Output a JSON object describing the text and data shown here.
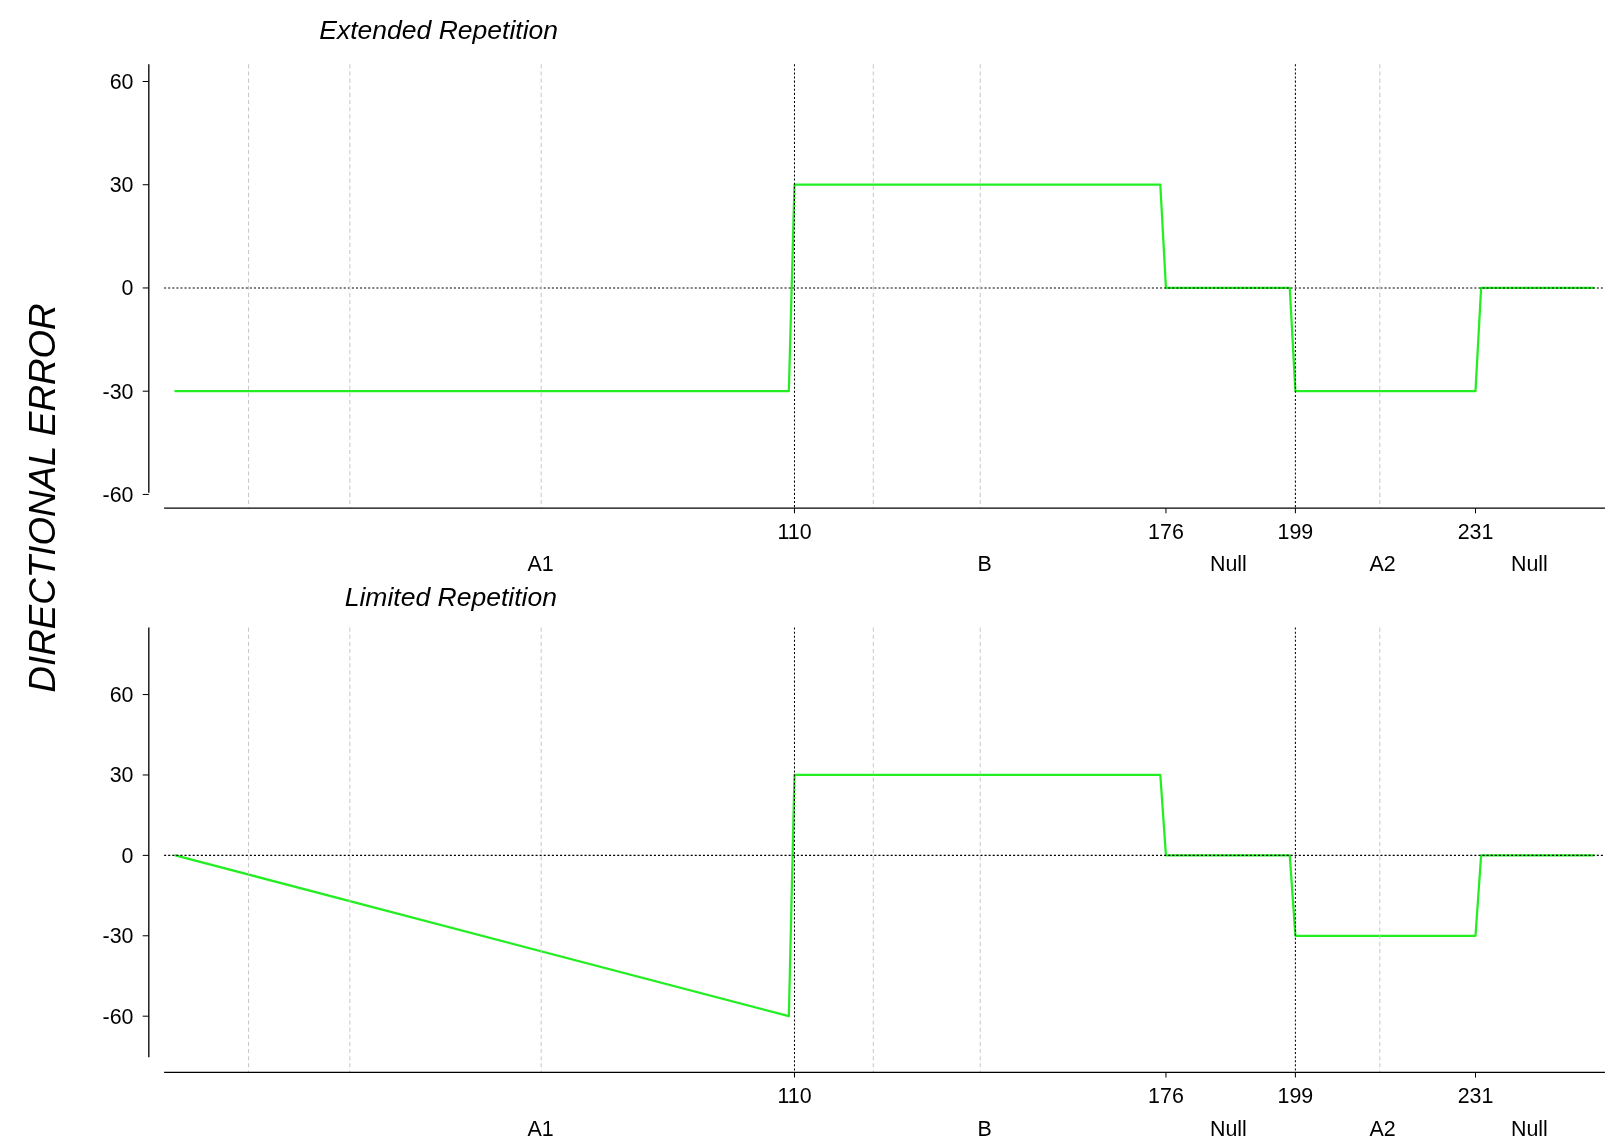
{
  "chart_data": [
    {
      "type": "line",
      "title": "Extended  Repetition",
      "ylabel": "DIRECTIONAL  ERROR",
      "x": [
        0,
        109,
        110,
        175,
        176,
        198,
        199,
        231,
        232,
        252
      ],
      "series": [
        {
          "color": "#22ee22",
          "values": [
            -30,
            -30,
            30,
            30,
            0,
            0,
            -30,
            -30,
            0,
            0
          ]
        }
      ],
      "xlim": [
        -2,
        254
      ],
      "ylim": [
        -64,
        65
      ],
      "yticks": [
        -60,
        -30,
        0,
        30,
        60
      ],
      "xticks": [
        110,
        176,
        199,
        231
      ],
      "marker": "none",
      "line_style": "solid",
      "ref_lines": [
        {
          "axis": "y",
          "value": 0,
          "line_style": "dotted",
          "color": "#000000"
        },
        {
          "axis": "x",
          "value": 110,
          "line_style": "dotted",
          "color": "#000000"
        },
        {
          "axis": "x",
          "value": 199,
          "line_style": "dotted",
          "color": "#000000"
        },
        {
          "axis": "x",
          "value": 13,
          "line_style": "dashed",
          "color": "#c8c8c8"
        },
        {
          "axis": "x",
          "value": 31,
          "line_style": "dashed",
          "color": "#c8c8c8"
        },
        {
          "axis": "x",
          "value": 65,
          "line_style": "dashed",
          "color": "#c8c8c8"
        },
        {
          "axis": "x",
          "value": 124,
          "line_style": "dashed",
          "color": "#c8c8c8"
        },
        {
          "axis": "x",
          "value": 143,
          "line_style": "dashed",
          "color": "#c8c8c8"
        },
        {
          "axis": "x",
          "value": 214,
          "line_style": "dashed",
          "color": "#c8c8c8"
        }
      ],
      "annotations": [
        "A1",
        "B",
        "Null",
        "A2",
        "Null"
      ]
    },
    {
      "type": "line",
      "title": "Limited  Repetition",
      "x": [
        0,
        109,
        110,
        175,
        176,
        198,
        199,
        231,
        232,
        252
      ],
      "series": [
        {
          "color": "#22ee22",
          "values": [
            0,
            -60,
            30,
            30,
            0,
            0,
            -30,
            -30,
            0,
            0
          ]
        }
      ],
      "xlim": [
        -2,
        254
      ],
      "ylim": [
        -81,
        85
      ],
      "yticks": [
        -60,
        -30,
        0,
        30,
        60
      ],
      "xticks": [
        110,
        176,
        199,
        231
      ],
      "marker": "none",
      "line_style": "solid",
      "ref_lines": [
        {
          "axis": "y",
          "value": 0,
          "line_style": "dotted",
          "color": "#000000"
        },
        {
          "axis": "x",
          "value": 110,
          "line_style": "dotted",
          "color": "#000000"
        },
        {
          "axis": "x",
          "value": 199,
          "line_style": "dotted",
          "color": "#000000"
        },
        {
          "axis": "x",
          "value": 13,
          "line_style": "dashed",
          "color": "#c8c8c8"
        },
        {
          "axis": "x",
          "value": 31,
          "line_style": "dashed",
          "color": "#c8c8c8"
        },
        {
          "axis": "x",
          "value": 65,
          "line_style": "dashed",
          "color": "#c8c8c8"
        },
        {
          "axis": "x",
          "value": 124,
          "line_style": "dashed",
          "color": "#c8c8c8"
        },
        {
          "axis": "x",
          "value": 143,
          "line_style": "dashed",
          "color": "#c8c8c8"
        },
        {
          "axis": "x",
          "value": 214,
          "line_style": "dashed",
          "color": "#c8c8c8"
        }
      ],
      "annotations": [
        "A1",
        "B",
        "Null",
        "A2",
        "Null"
      ]
    }
  ]
}
